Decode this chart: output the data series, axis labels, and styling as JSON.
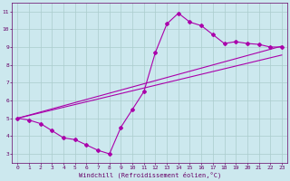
{
  "xlabel": "Windchill (Refroidissement éolien,°C)",
  "background_color": "#cce8ee",
  "grid_color": "#aacccc",
  "line_color": "#aa00aa",
  "spine_color": "#660066",
  "xlim": [
    -0.5,
    23.5
  ],
  "ylim": [
    2.5,
    11.5
  ],
  "xticks": [
    0,
    1,
    2,
    3,
    4,
    5,
    6,
    7,
    8,
    9,
    10,
    11,
    12,
    13,
    14,
    15,
    16,
    17,
    18,
    19,
    20,
    21,
    22,
    23
  ],
  "yticks": [
    3,
    4,
    5,
    6,
    7,
    8,
    9,
    10,
    11
  ],
  "zigzag_x": [
    0,
    1,
    2,
    3,
    4,
    5,
    6,
    7,
    8,
    9,
    10,
    11,
    12,
    13,
    14,
    15,
    16,
    17,
    18,
    19,
    20,
    21,
    22,
    23
  ],
  "zigzag_y": [
    5.0,
    4.9,
    4.7,
    4.3,
    3.9,
    3.8,
    3.5,
    3.2,
    3.0,
    4.5,
    5.5,
    6.5,
    8.7,
    10.3,
    10.9,
    10.4,
    10.2,
    9.7,
    9.2,
    9.3,
    9.2,
    9.15,
    9.0,
    9.0
  ],
  "line1_x": [
    0,
    23
  ],
  "line1_y": [
    5.0,
    9.05
  ],
  "line2_x": [
    0,
    23
  ],
  "line2_y": [
    5.0,
    8.55
  ],
  "marker": "D",
  "markersize": 2.0,
  "linewidth": 0.8,
  "tick_fontsize": 4.5,
  "xlabel_fontsize": 5.0
}
